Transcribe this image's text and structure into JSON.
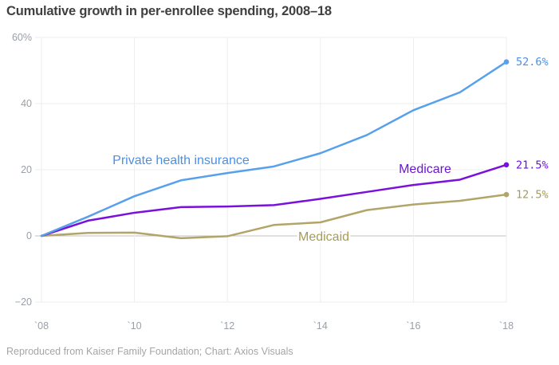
{
  "footer": "Reproduced from Kaiser Family Foundation; Chart: Axios Visuals",
  "colors": {
    "background": "#ffffff",
    "title_text": "#3f3f3f",
    "axis_text": "#9aa0a6",
    "grid": "#ededed",
    "zero_line": "#c2c2c2",
    "footer_text": "#a5a5a5"
  },
  "chart_data": {
    "type": "line",
    "title": "Cumulative growth in per-enrollee spending, 2008–18",
    "xlabel": "",
    "ylabel": "",
    "x": [
      2008,
      2009,
      2010,
      2011,
      2012,
      2013,
      2014,
      2015,
      2016,
      2017,
      2018
    ],
    "x_ticks": [
      2008,
      2010,
      2012,
      2014,
      2016,
      2018
    ],
    "x_tick_labels": [
      "`08",
      "`10",
      "`12",
      "`14",
      "`16",
      "`18"
    ],
    "y_ticks": [
      60,
      40,
      20,
      0,
      -20
    ],
    "y_tick_labels": [
      "60%",
      "40",
      "20",
      "0",
      "−20"
    ],
    "ylim": [
      -20,
      60
    ],
    "xlim": [
      2008,
      2018
    ],
    "grid": true,
    "legend_position": "inline-labels",
    "series": [
      {
        "name": "Private health insurance",
        "color": "#56a0ec",
        "label_color": "#4a8fe8",
        "end_label": "52.6%",
        "values": [
          0,
          5.8,
          12.0,
          16.8,
          19.0,
          21.0,
          25.0,
          30.5,
          38.0,
          43.4,
          52.6
        ]
      },
      {
        "name": "Medicare",
        "color": "#7a10dc",
        "label_color": "#6c14d4",
        "end_label": "21.5%",
        "values": [
          0,
          4.6,
          7.0,
          8.7,
          8.9,
          9.3,
          11.2,
          13.3,
          15.4,
          17.0,
          21.5
        ]
      },
      {
        "name": "Medicaid",
        "color": "#b3a468",
        "label_color": "#a79b56",
        "end_label": "12.5%",
        "values": [
          0,
          0.9,
          1.0,
          -0.7,
          -0.1,
          3.3,
          4.1,
          7.8,
          9.5,
          10.6,
          12.5
        ]
      }
    ]
  }
}
